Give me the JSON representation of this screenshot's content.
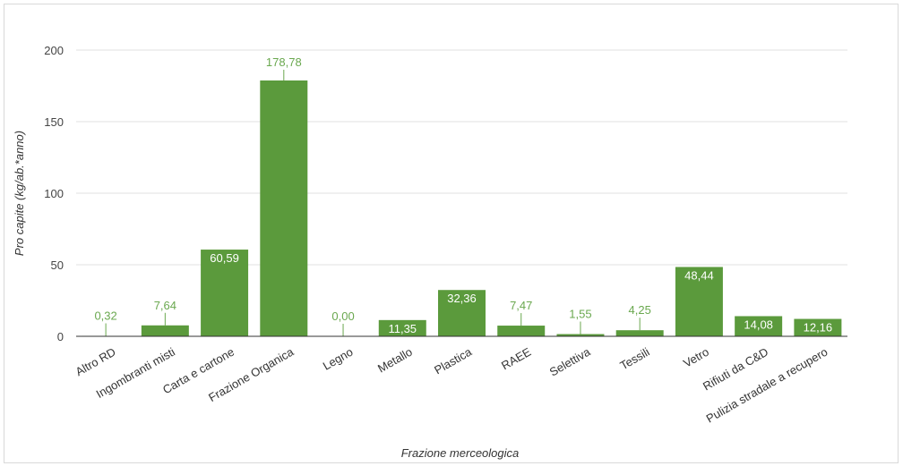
{
  "chart_data": {
    "type": "bar",
    "categories": [
      "Altro RD",
      "Ingombranti misti",
      "Carta e cartone",
      "Frazione Organica",
      "Legno",
      "Metallo",
      "Plastica",
      "RAEE",
      "Selettiva",
      "Tessili",
      "Vetro",
      "Rifiuti da C&D",
      "Pulizia stradale a recupero"
    ],
    "values": [
      0.32,
      7.64,
      60.59,
      178.78,
      0.0,
      11.35,
      32.36,
      7.47,
      1.55,
      4.25,
      48.44,
      14.08,
      12.16
    ],
    "labels": [
      "0,32",
      "7,64",
      "60,59",
      "178,78",
      "0,00",
      "11,35",
      "32,36",
      "7,47",
      "1,55",
      "4,25",
      "48,44",
      "14,08",
      "12,16"
    ],
    "xlabel": "Frazione merceologica",
    "ylabel": "Pro capite (kg/ab.*anno)",
    "ylim": [
      0,
      200
    ],
    "yticks": [
      "0",
      "50",
      "100",
      "150",
      "200"
    ],
    "grid": true,
    "legend": "none",
    "colors": {
      "bar": "#5b9a3c",
      "label_inside": "#ffffff",
      "label_outside": "#6aa84f",
      "grid": "#e0e0e0",
      "axis": "#333333"
    }
  }
}
